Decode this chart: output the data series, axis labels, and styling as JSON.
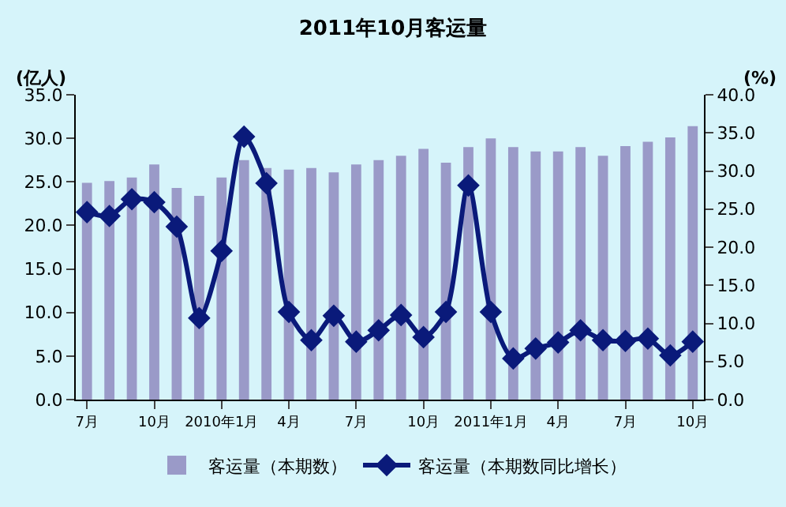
{
  "chart_data": {
    "type": "bar",
    "title": "2011年10月客运量",
    "ylabel": "(亿人)",
    "y2label": "(%)",
    "categories": [
      "7月",
      null,
      null,
      "10月",
      null,
      null,
      "2010年1月",
      null,
      null,
      "4月",
      null,
      null,
      "7月",
      null,
      null,
      "10月",
      null,
      null,
      "2011年1月",
      null,
      null,
      "4月",
      null,
      null,
      "7月",
      null,
      null,
      "10月"
    ],
    "series": [
      {
        "name": "客运量（本期数）",
        "color": "#9a9ac8",
        "values": [
          24.9,
          25.1,
          25.5,
          27.0,
          24.3,
          23.4,
          25.5,
          27.5,
          26.6,
          26.4,
          26.6,
          26.1,
          27.0,
          27.5,
          28.0,
          28.8,
          27.2,
          29.0,
          30.0,
          29.0,
          28.5,
          28.5,
          29.0,
          28.0,
          29.1,
          29.6,
          30.1,
          31.4
        ]
      },
      {
        "name": "客运量（本期数同比增长）",
        "type": "line",
        "axis": "y2",
        "color": "#0a1a7a",
        "marker": "diamond",
        "line_style": "solid",
        "values": [
          24.6,
          24.1,
          26.3,
          25.9,
          22.7,
          10.7,
          19.5,
          34.5,
          28.4,
          11.5,
          7.8,
          11.0,
          7.6,
          9.1,
          11.1,
          8.2,
          11.5,
          28.1,
          11.5,
          5.4,
          6.7,
          7.5,
          9.1,
          7.8,
          7.7,
          8.0,
          5.8,
          7.6
        ]
      }
    ],
    "ylim": [
      0,
      35
    ],
    "yticks": [
      {
        "value": 0,
        "label": "0.0"
      },
      {
        "value": 5,
        "label": "5.0"
      },
      {
        "value": 10,
        "label": "10.0"
      },
      {
        "value": 15,
        "label": "15.0"
      },
      {
        "value": 20,
        "label": "20.0"
      },
      {
        "value": 25,
        "label": "25.0"
      },
      {
        "value": 30,
        "label": "30.0"
      },
      {
        "value": 35,
        "label": "35.0"
      }
    ],
    "y2lim": [
      0,
      40
    ],
    "y2ticks": [
      {
        "value": 0,
        "label": "0.0"
      },
      {
        "value": 5,
        "label": "5.0"
      },
      {
        "value": 10,
        "label": "10.0"
      },
      {
        "value": 15,
        "label": "15.0"
      },
      {
        "value": 20,
        "label": "20.0"
      },
      {
        "value": 25,
        "label": "25.0"
      },
      {
        "value": 30,
        "label": "30.0"
      },
      {
        "value": 35,
        "label": "35.0"
      },
      {
        "value": 40,
        "label": "40.0"
      }
    ],
    "grid": false,
    "legend": "bottom"
  }
}
